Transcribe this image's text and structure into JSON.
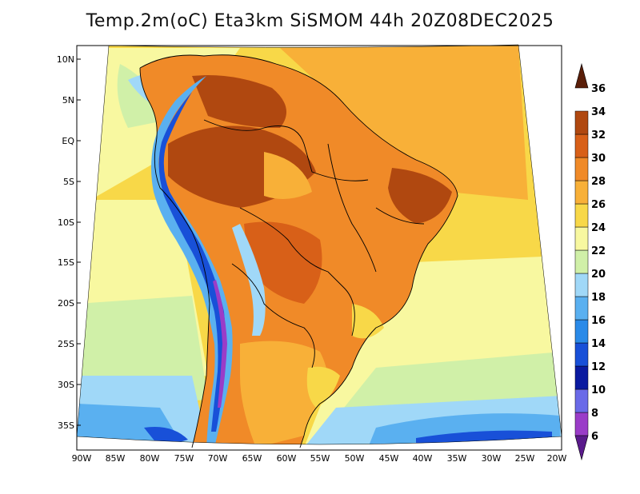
{
  "title": "Temp.2m(oC) Eta3km SiSMOM 44h 20Z08DEC2025",
  "map": {
    "variable": "2 m temperature",
    "units": "oC",
    "region": "South America",
    "lat_labels": [
      "10N",
      "5N",
      "EQ",
      "5S",
      "10S",
      "15S",
      "20S",
      "25S",
      "30S",
      "35S"
    ],
    "lon_labels": [
      "90W",
      "85W",
      "80W",
      "75W",
      "70W",
      "65W",
      "60W",
      "55W",
      "50W",
      "45W",
      "40W",
      "35W",
      "30W",
      "25W",
      "20W"
    ]
  },
  "colorbar": {
    "levels": [
      "6",
      "8",
      "10",
      "12",
      "14",
      "16",
      "18",
      "20",
      "22",
      "24",
      "26",
      "28",
      "30",
      "32",
      "34",
      "36"
    ],
    "colors": [
      "#5a1a8c",
      "#9a3cc8",
      "#6a6ae8",
      "#0a1aa0",
      "#1850d8",
      "#2a8ae8",
      "#5ab0f0",
      "#a0d8f8",
      "#d0f0a8",
      "#f8f8a0",
      "#f8d848",
      "#f8b038",
      "#f08a28",
      "#d86018",
      "#b04810",
      "#7a2e0a"
    ],
    "low_arrow_color": "#3a0a60",
    "high_arrow_color": "#5a1e08"
  }
}
